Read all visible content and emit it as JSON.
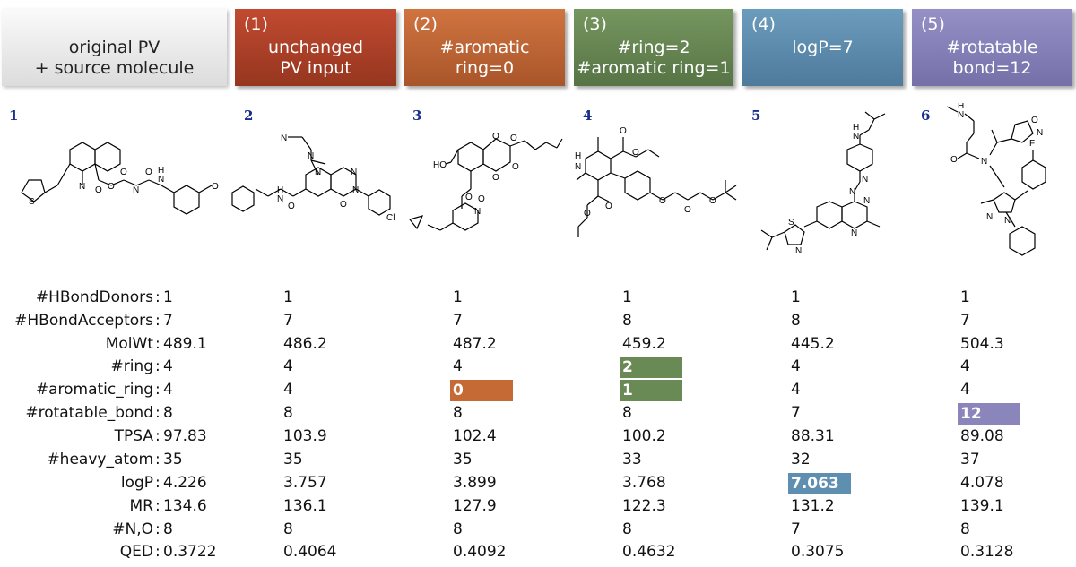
{
  "headers": [
    {
      "num": "",
      "title": "original PV\n+ source molecule",
      "color": "#e8e8e8"
    },
    {
      "num": "(1)",
      "title": "unchanged\nPV input",
      "color": "#b3442c"
    },
    {
      "num": "(2)",
      "title": "#aromatic\nring=0",
      "color": "#c66a35"
    },
    {
      "num": "(3)",
      "title": "#ring=2\n#aromatic ring=1",
      "color": "#6a8a55"
    },
    {
      "num": "(4)",
      "title": "logP=7",
      "color": "#5f8fb0"
    },
    {
      "num": "(5)",
      "title": "#rotatable\nbond=12",
      "color": "#8a85bb"
    }
  ],
  "molecule_labels": [
    "1",
    "2",
    "3",
    "4",
    "5",
    "6"
  ],
  "row_labels": [
    "#HBondDonors",
    "#HBondAcceptors",
    "MolWt",
    "#ring",
    "#aromatic_ring",
    "#rotatable_bond",
    "TPSA",
    "#heavy_atom",
    "logP",
    "MR",
    "#N,O",
    "QED"
  ],
  "colon": ":",
  "values": [
    [
      "1",
      "1",
      "1",
      "1",
      "1",
      "1"
    ],
    [
      "7",
      "7",
      "7",
      "8",
      "8",
      "7"
    ],
    [
      "489.1",
      "486.2",
      "487.2",
      "459.2",
      "445.2",
      "504.3"
    ],
    [
      "4",
      "4",
      "4",
      "2",
      "4",
      "4"
    ],
    [
      "4",
      "4",
      "0",
      "1",
      "4",
      "4"
    ],
    [
      "8",
      "8",
      "8",
      "8",
      "7",
      "12"
    ],
    [
      "97.83",
      "103.9",
      "102.4",
      "100.2",
      "88.31",
      "89.08"
    ],
    [
      "35",
      "35",
      "35",
      "33",
      "32",
      "37"
    ],
    [
      "4.226",
      "3.757",
      "3.899",
      "3.768",
      "7.063",
      "4.078"
    ],
    [
      "134.6",
      "136.1",
      "127.9",
      "122.3",
      "131.2",
      "139.1"
    ],
    [
      "8",
      "8",
      "8",
      "8",
      "7",
      "8"
    ],
    [
      "0.3722",
      "0.4064",
      "0.4092",
      "0.4632",
      "0.3075",
      "0.3128"
    ]
  ],
  "highlights": [
    {
      "row": 4,
      "col": 2,
      "color": "#c66a35"
    },
    {
      "row": 3,
      "col": 3,
      "color": "#6a8a55"
    },
    {
      "row": 4,
      "col": 3,
      "color": "#6a8a55"
    },
    {
      "row": 8,
      "col": 4,
      "color": "#5f8fb0"
    },
    {
      "row": 5,
      "col": 5,
      "color": "#8a85bb"
    }
  ],
  "atom_labels": {
    "mol1": [
      "N",
      "S",
      "O",
      "O",
      "O",
      "N",
      "O",
      "N",
      "H",
      "O"
    ],
    "mol2": [
      "N",
      "N",
      "N",
      "N",
      "N",
      "N",
      "H",
      "O",
      "O",
      "Cl"
    ],
    "mol3": [
      "HO",
      "O",
      "O",
      "O",
      "O",
      "O",
      "O",
      "N"
    ],
    "mol4": [
      "H",
      "N",
      "O",
      "O",
      "O",
      "O",
      "O",
      "O",
      "O"
    ],
    "mol5": [
      "H",
      "N",
      "N",
      "N",
      "N",
      "N",
      "S",
      "N"
    ],
    "mol6": [
      "H",
      "N",
      "O",
      "N",
      "N",
      "O",
      "N",
      "N",
      "F"
    ]
  }
}
